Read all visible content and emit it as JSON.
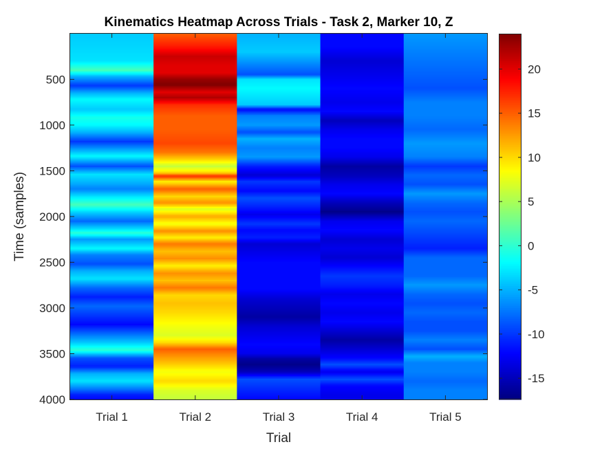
{
  "chart_data": {
    "type": "heatmap",
    "title": "Kinematics Heatmap Across Trials - Task 2, Marker 10, Z",
    "xlabel": "Trial",
    "ylabel": "Time (samples)",
    "categories": [
      "Trial 1",
      "Trial 2",
      "Trial 3",
      "Trial 4",
      "Trial 5"
    ],
    "ylim": [
      1,
      4000
    ],
    "y_ticks": [
      500,
      1000,
      1500,
      2000,
      2500,
      3000,
      3500,
      4000
    ],
    "y_direction": "reverse",
    "colormap": "jet",
    "clim": [
      -17.4,
      24
    ],
    "colorbar_ticks": [
      -15,
      -10,
      -5,
      0,
      5,
      10,
      15,
      20
    ],
    "colorbar_placement": "right",
    "grid": false,
    "series": [
      {
        "values": [
          [
            0,
            -4
          ],
          [
            300,
            -3
          ],
          [
            400,
            1
          ],
          [
            470,
            -5
          ],
          [
            570,
            -10
          ],
          [
            650,
            -5
          ],
          [
            720,
            -2
          ],
          [
            830,
            -4
          ],
          [
            920,
            -1
          ],
          [
            1000,
            -2
          ],
          [
            1080,
            -5
          ],
          [
            1180,
            -10
          ],
          [
            1260,
            -6
          ],
          [
            1340,
            -2
          ],
          [
            1450,
            -9
          ],
          [
            1540,
            -3
          ],
          [
            1630,
            -5
          ],
          [
            1700,
            -7
          ],
          [
            1780,
            -3
          ],
          [
            1870,
            1
          ],
          [
            1960,
            -4
          ],
          [
            2050,
            -8
          ],
          [
            2140,
            -3
          ],
          [
            2180,
            0
          ],
          [
            2250,
            -6
          ],
          [
            2350,
            -2
          ],
          [
            2420,
            -7
          ],
          [
            2520,
            -9
          ],
          [
            2600,
            -5
          ],
          [
            2680,
            -3
          ],
          [
            2780,
            -8
          ],
          [
            2880,
            -11
          ],
          [
            2980,
            -8
          ],
          [
            3080,
            -10
          ],
          [
            3180,
            -12
          ],
          [
            3280,
            -8
          ],
          [
            3380,
            -4
          ],
          [
            3460,
            0
          ],
          [
            3550,
            -9
          ],
          [
            3640,
            -11
          ],
          [
            3720,
            -5
          ],
          [
            3800,
            -3
          ],
          [
            3880,
            -7
          ],
          [
            3950,
            -11
          ],
          [
            4000,
            -12
          ]
        ]
      },
      {
        "values": [
          [
            0,
            15
          ],
          [
            150,
            18
          ],
          [
            250,
            21
          ],
          [
            350,
            20
          ],
          [
            430,
            20
          ],
          [
            500,
            23
          ],
          [
            560,
            24
          ],
          [
            640,
            20
          ],
          [
            700,
            22
          ],
          [
            780,
            17
          ],
          [
            900,
            15
          ],
          [
            1050,
            15
          ],
          [
            1200,
            16
          ],
          [
            1300,
            14
          ],
          [
            1380,
            10
          ],
          [
            1450,
            6
          ],
          [
            1520,
            10
          ],
          [
            1560,
            17
          ],
          [
            1620,
            9
          ],
          [
            1700,
            15
          ],
          [
            1780,
            10
          ],
          [
            1850,
            13
          ],
          [
            1920,
            7
          ],
          [
            2000,
            12
          ],
          [
            2080,
            8
          ],
          [
            2160,
            13
          ],
          [
            2230,
            9
          ],
          [
            2300,
            14
          ],
          [
            2380,
            11
          ],
          [
            2460,
            13
          ],
          [
            2540,
            9
          ],
          [
            2620,
            13
          ],
          [
            2700,
            11
          ],
          [
            2780,
            14
          ],
          [
            2860,
            10
          ],
          [
            2950,
            11
          ],
          [
            3050,
            10
          ],
          [
            3200,
            8
          ],
          [
            3300,
            7
          ],
          [
            3380,
            10
          ],
          [
            3450,
            15
          ],
          [
            3520,
            13
          ],
          [
            3600,
            11
          ],
          [
            3700,
            8
          ],
          [
            3800,
            10
          ],
          [
            3900,
            7
          ],
          [
            4000,
            6
          ]
        ]
      },
      {
        "values": [
          [
            0,
            -5
          ],
          [
            200,
            -4
          ],
          [
            350,
            -7
          ],
          [
            450,
            -9
          ],
          [
            500,
            -3
          ],
          [
            600,
            -2
          ],
          [
            780,
            -4
          ],
          [
            830,
            -12
          ],
          [
            900,
            -7
          ],
          [
            1000,
            -6
          ],
          [
            1080,
            -9
          ],
          [
            1150,
            -5
          ],
          [
            1250,
            -7
          ],
          [
            1350,
            -6
          ],
          [
            1450,
            -11
          ],
          [
            1550,
            -14
          ],
          [
            1620,
            -10
          ],
          [
            1720,
            -12
          ],
          [
            1800,
            -9
          ],
          [
            1900,
            -11
          ],
          [
            1980,
            -13
          ],
          [
            2080,
            -10
          ],
          [
            2150,
            -12
          ],
          [
            2230,
            -11
          ],
          [
            2300,
            -14
          ],
          [
            2400,
            -13
          ],
          [
            2500,
            -12
          ],
          [
            2650,
            -12
          ],
          [
            2800,
            -12
          ],
          [
            2900,
            -14
          ],
          [
            3000,
            -15
          ],
          [
            3100,
            -16
          ],
          [
            3200,
            -14
          ],
          [
            3300,
            -13
          ],
          [
            3400,
            -12
          ],
          [
            3500,
            -13
          ],
          [
            3560,
            -16
          ],
          [
            3620,
            -17
          ],
          [
            3700,
            -15
          ],
          [
            3780,
            -9
          ],
          [
            3850,
            -10
          ],
          [
            3920,
            -11
          ],
          [
            4000,
            -12
          ]
        ]
      },
      {
        "values": [
          [
            0,
            -12
          ],
          [
            150,
            -12
          ],
          [
            300,
            -14
          ],
          [
            450,
            -13
          ],
          [
            600,
            -12
          ],
          [
            750,
            -13
          ],
          [
            850,
            -12
          ],
          [
            950,
            -15
          ],
          [
            1050,
            -13
          ],
          [
            1150,
            -12
          ],
          [
            1250,
            -12
          ],
          [
            1350,
            -13
          ],
          [
            1450,
            -16
          ],
          [
            1550,
            -15
          ],
          [
            1650,
            -13
          ],
          [
            1750,
            -12
          ],
          [
            1850,
            -15
          ],
          [
            1950,
            -17
          ],
          [
            2050,
            -13
          ],
          [
            2150,
            -12
          ],
          [
            2250,
            -14
          ],
          [
            2350,
            -13
          ],
          [
            2450,
            -14
          ],
          [
            2550,
            -12
          ],
          [
            2650,
            -10
          ],
          [
            2750,
            -11
          ],
          [
            2850,
            -13
          ],
          [
            2950,
            -12
          ],
          [
            3050,
            -13
          ],
          [
            3150,
            -12
          ],
          [
            3250,
            -14
          ],
          [
            3350,
            -16
          ],
          [
            3450,
            -14
          ],
          [
            3550,
            -12
          ],
          [
            3620,
            -9
          ],
          [
            3700,
            -13
          ],
          [
            3780,
            -9
          ],
          [
            3850,
            -12
          ],
          [
            3950,
            -13
          ],
          [
            4000,
            -13
          ]
        ]
      },
      {
        "values": [
          [
            0,
            -6
          ],
          [
            200,
            -7
          ],
          [
            400,
            -8
          ],
          [
            600,
            -9
          ],
          [
            750,
            -7
          ],
          [
            900,
            -7
          ],
          [
            1050,
            -8
          ],
          [
            1200,
            -6
          ],
          [
            1350,
            -7
          ],
          [
            1450,
            -10
          ],
          [
            1550,
            -8
          ],
          [
            1650,
            -9
          ],
          [
            1750,
            -6
          ],
          [
            1850,
            -8
          ],
          [
            1950,
            -9
          ],
          [
            2050,
            -8
          ],
          [
            2150,
            -9
          ],
          [
            2250,
            -10
          ],
          [
            2350,
            -11
          ],
          [
            2450,
            -8
          ],
          [
            2550,
            -8
          ],
          [
            2650,
            -8
          ],
          [
            2750,
            -6
          ],
          [
            2850,
            -8
          ],
          [
            2950,
            -9
          ],
          [
            3050,
            -8
          ],
          [
            3150,
            -9
          ],
          [
            3250,
            -9
          ],
          [
            3350,
            -7
          ],
          [
            3450,
            -9
          ],
          [
            3530,
            -5
          ],
          [
            3600,
            -7
          ],
          [
            3700,
            -7
          ],
          [
            3800,
            -8
          ],
          [
            3900,
            -7
          ],
          [
            4000,
            -7
          ]
        ]
      }
    ]
  }
}
